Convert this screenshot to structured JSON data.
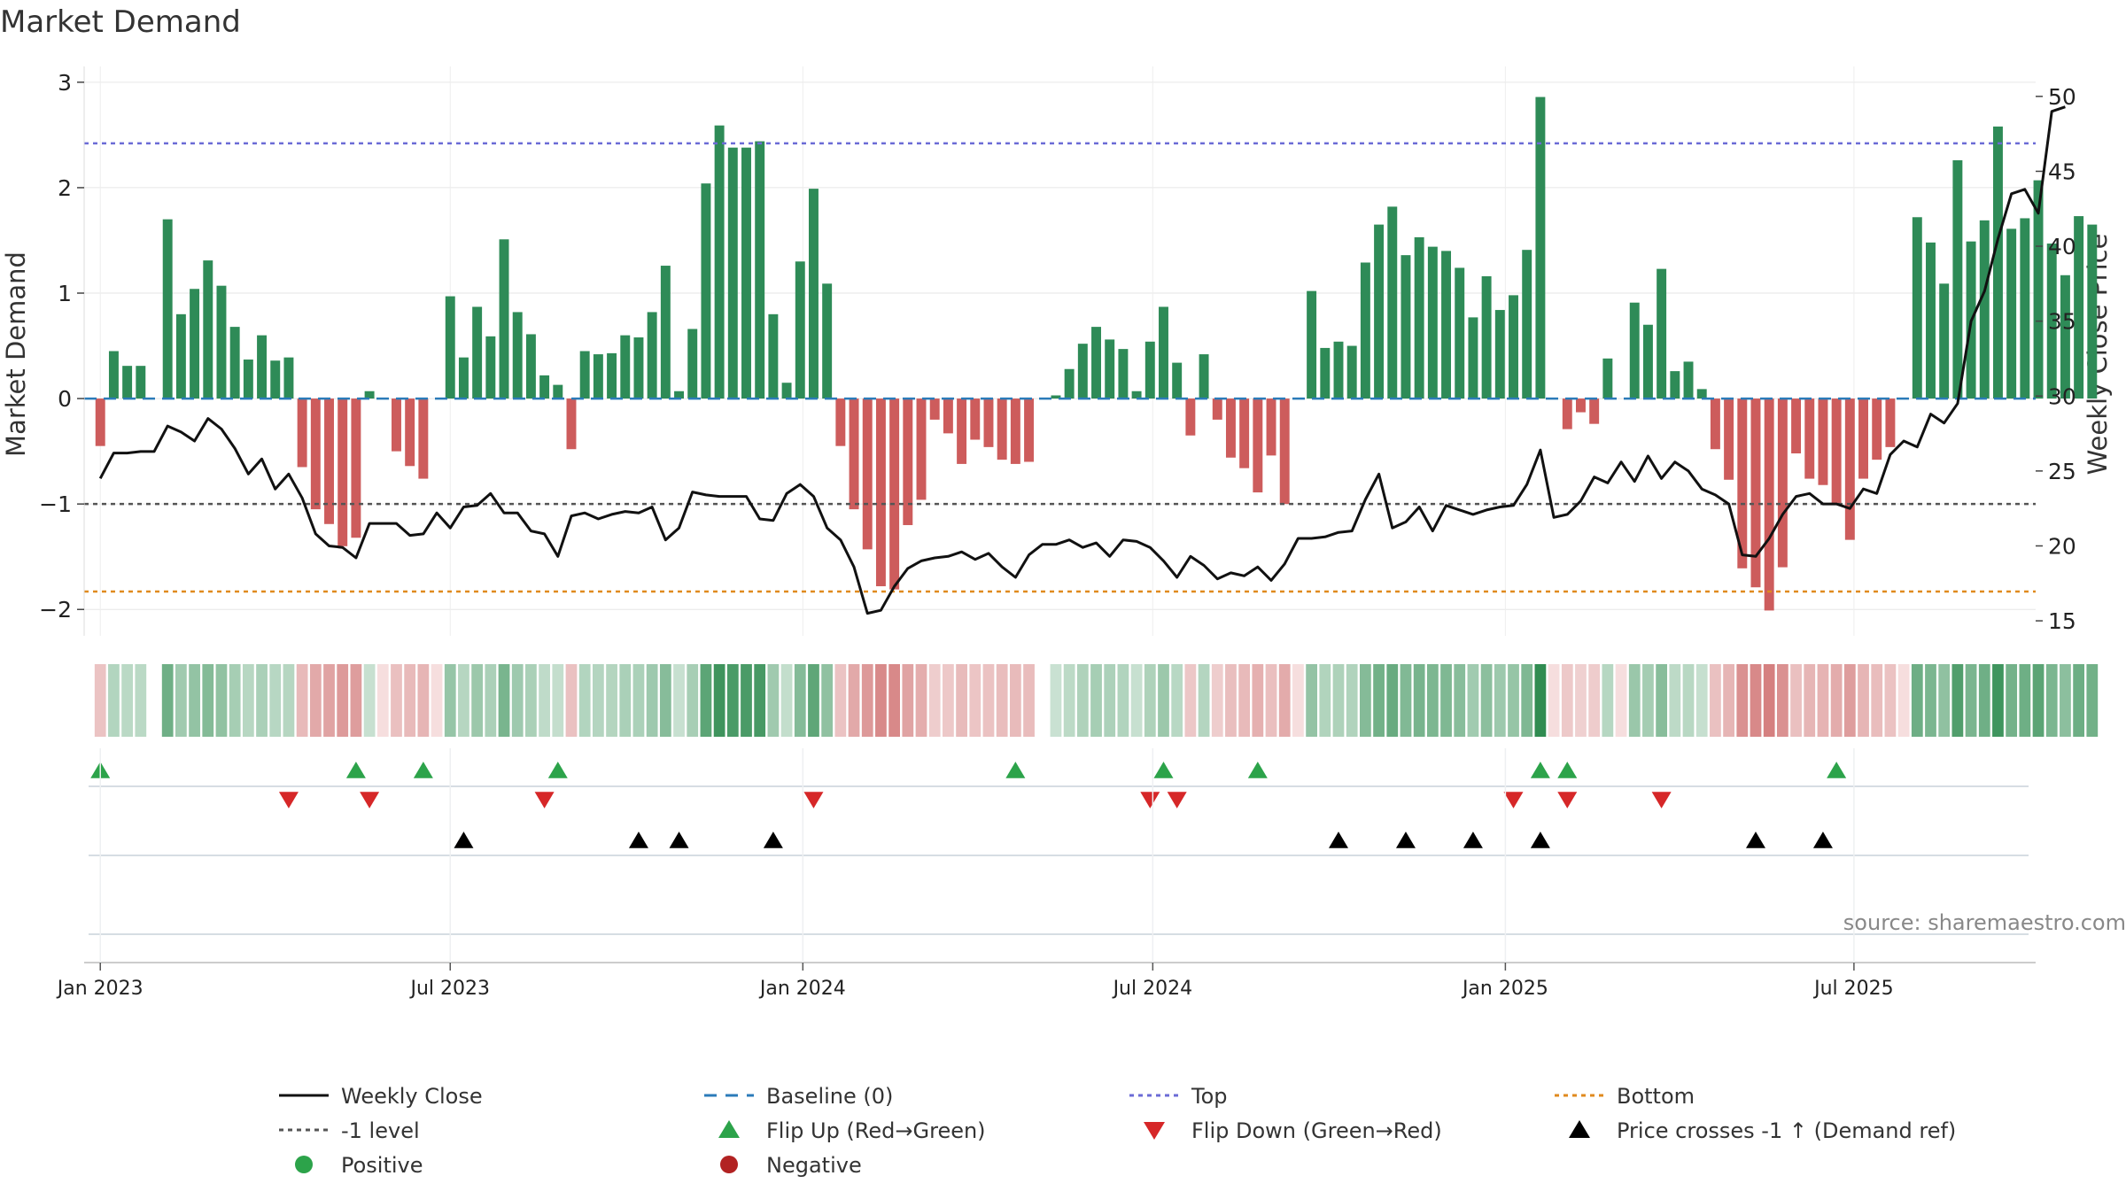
{
  "chart_data": {
    "type": "bar",
    "title": "Market Demand",
    "ylabel": "Market Demand",
    "y2label": "Weekly Close Price",
    "ylim": [
      -2.25,
      3.15
    ],
    "y2lim": [
      14.0,
      52.0
    ],
    "yticks": [
      3,
      2,
      1,
      0,
      -1,
      -2
    ],
    "y2ticks": [
      50,
      45,
      40,
      35,
      30,
      25,
      20,
      15
    ],
    "ytick_labels": [
      "3",
      "2",
      "1",
      "0",
      "−1",
      "−2"
    ],
    "y2tick_labels": [
      "50",
      "45",
      "40",
      "35",
      "30",
      "25",
      "20",
      "15"
    ],
    "x_range": [
      -1.2,
      143.8
    ],
    "x_ticks": [
      {
        "label": "Jan 2023",
        "week": 0
      },
      {
        "label": "Jul 2023",
        "week": 26
      },
      {
        "label": "Jan 2024",
        "week": 52.2
      },
      {
        "label": "Jul 2024",
        "week": 78.2
      },
      {
        "label": "Jan 2025",
        "week": 104.4
      },
      {
        "label": "Jul 2025",
        "week": 130.3
      }
    ],
    "reference_lines": {
      "top": 2.42,
      "bottom": -1.83,
      "minus_one": -1.0,
      "baseline": 0.0
    },
    "series": [
      {
        "name": "Market Demand (weekly bars)",
        "values": [
          -0.45,
          0.45,
          0.31,
          0.31,
          null,
          1.7,
          0.8,
          1.04,
          1.31,
          1.07,
          0.68,
          0.37,
          0.6,
          0.36,
          0.39,
          -0.65,
          -1.05,
          -1.19,
          -1.4,
          -1.32,
          0.07,
          0.0,
          -0.5,
          -0.64,
          -0.76,
          0.0,
          0.97,
          0.39,
          0.87,
          0.59,
          1.51,
          0.82,
          0.61,
          0.22,
          0.13,
          -0.48,
          0.45,
          0.42,
          0.43,
          0.6,
          0.58,
          0.82,
          1.26,
          0.07,
          0.66,
          2.04,
          2.59,
          2.38,
          2.38,
          2.44,
          0.8,
          0.15,
          1.3,
          1.99,
          1.09,
          -0.45,
          -1.05,
          -1.43,
          -1.78,
          -1.81,
          -1.2,
          -0.96,
          -0.2,
          -0.33,
          -0.62,
          -0.39,
          -0.46,
          -0.58,
          -0.62,
          -0.6,
          null,
          0.03,
          0.28,
          0.52,
          0.68,
          0.56,
          0.47,
          0.07,
          0.54,
          0.87,
          0.34,
          -0.35,
          0.42,
          -0.2,
          -0.56,
          -0.66,
          -0.89,
          -0.54,
          -1.0,
          0.0,
          1.02,
          0.48,
          0.54,
          0.5,
          1.29,
          1.65,
          1.82,
          1.36,
          1.53,
          1.44,
          1.4,
          1.24,
          0.77,
          1.16,
          0.84,
          0.98,
          1.41,
          2.86,
          0.0,
          -0.29,
          -0.13,
          -0.24,
          0.38,
          0.0,
          0.91,
          0.7,
          1.23,
          0.26,
          0.35,
          0.09,
          -0.48,
          -0.77,
          -1.61,
          -1.79,
          -2.01,
          -1.6,
          -0.52,
          -0.76,
          -0.82,
          -0.99,
          -1.34,
          -0.76,
          -0.58,
          -0.46,
          0.0,
          1.72,
          1.48,
          1.09,
          2.26,
          1.49,
          1.69,
          2.58,
          1.61,
          1.71,
          2.07,
          1.47,
          1.17,
          1.73,
          1.65
        ]
      },
      {
        "name": "Weekly Close",
        "values": [
          24.5,
          26.2,
          26.2,
          26.3,
          26.3,
          28.0,
          27.6,
          27.0,
          28.5,
          27.8,
          26.5,
          24.8,
          25.8,
          23.8,
          24.8,
          23.2,
          20.8,
          20.0,
          19.9,
          19.2,
          21.5,
          21.5,
          21.5,
          20.7,
          20.8,
          22.2,
          21.2,
          22.6,
          22.7,
          23.5,
          22.2,
          22.2,
          21.0,
          20.8,
          19.3,
          22.0,
          22.2,
          21.8,
          22.1,
          22.3,
          22.2,
          22.6,
          20.4,
          21.2,
          23.6,
          23.4,
          23.3,
          23.3,
          23.3,
          21.8,
          21.7,
          23.5,
          24.1,
          23.3,
          21.2,
          20.4,
          18.6,
          15.5,
          15.7,
          17.3,
          18.5,
          19.0,
          19.2,
          19.3,
          19.6,
          19.1,
          19.5,
          18.6,
          17.9,
          19.4,
          20.1,
          20.1,
          20.4,
          19.9,
          20.2,
          19.3,
          20.4,
          20.3,
          19.9,
          19.0,
          17.9,
          19.3,
          18.7,
          17.8,
          18.2,
          18.0,
          18.6,
          17.7,
          18.8,
          20.5,
          20.5,
          20.6,
          20.9,
          21.0,
          23.1,
          24.8,
          21.2,
          21.6,
          22.6,
          21.0,
          22.7,
          22.4,
          22.1,
          22.4,
          22.6,
          22.7,
          24.1,
          26.4,
          21.9,
          22.1,
          23.0,
          24.6,
          24.2,
          25.6,
          24.3,
          26.0,
          24.5,
          25.6,
          25.0,
          23.8,
          23.4,
          22.8,
          19.4,
          19.3,
          20.5,
          22.1,
          23.3,
          23.5,
          22.8,
          22.8,
          22.5,
          23.8,
          23.5,
          26.1,
          27.0,
          26.6,
          28.8,
          28.2,
          29.5,
          35.0,
          37.0,
          40.5,
          43.5,
          43.8,
          42.2,
          49.0,
          49.3
        ]
      }
    ],
    "heatmap_strip": {
      "description_values": "demand per week shown as colored cells",
      "positive_color": "#2e8b4f",
      "negative_color": "#c85a5a"
    },
    "flip_up_weeks": [
      0,
      19,
      24,
      34,
      68,
      79,
      86,
      107,
      109,
      129
    ],
    "flip_down_weeks": [
      14,
      20,
      33,
      53,
      78,
      80,
      105,
      109,
      116
    ],
    "price_cross_weeks": [
      27,
      40,
      43,
      50,
      92,
      97,
      102,
      107,
      123,
      128
    ],
    "legend": [
      {
        "label": "Weekly Close",
        "symbol": "solid-line",
        "color": "#111111"
      },
      {
        "label": "Baseline (0)",
        "symbol": "dashed-line",
        "color": "#2b7bb9"
      },
      {
        "label": "Top",
        "symbol": "dotted-line",
        "color": "#6b6bd6"
      },
      {
        "label": "Bottom",
        "symbol": "dotted-line",
        "color": "#e08a1e"
      },
      {
        "label": "-1 level",
        "symbol": "dotted-line",
        "color": "#555555"
      },
      {
        "label": "Flip Up (Red→Green)",
        "symbol": "triangle-up",
        "color": "#2ca34a"
      },
      {
        "label": "Flip Down (Green→Red)",
        "symbol": "triangle-down",
        "color": "#d62728"
      },
      {
        "label": "Price crosses -1 ↑ (Demand ref)",
        "symbol": "triangle-up",
        "color": "#000000"
      },
      {
        "label": "Positive",
        "symbol": "circle",
        "color": "#2ca34a"
      },
      {
        "label": "Negative",
        "symbol": "circle",
        "color": "#b22222"
      }
    ],
    "source": "source: sharemaestro.com",
    "colors": {
      "bar_positive": "#2e8b57",
      "bar_negative": "#cd5c5c",
      "price_line": "#111111",
      "grid": "#e6e6e6"
    }
  }
}
